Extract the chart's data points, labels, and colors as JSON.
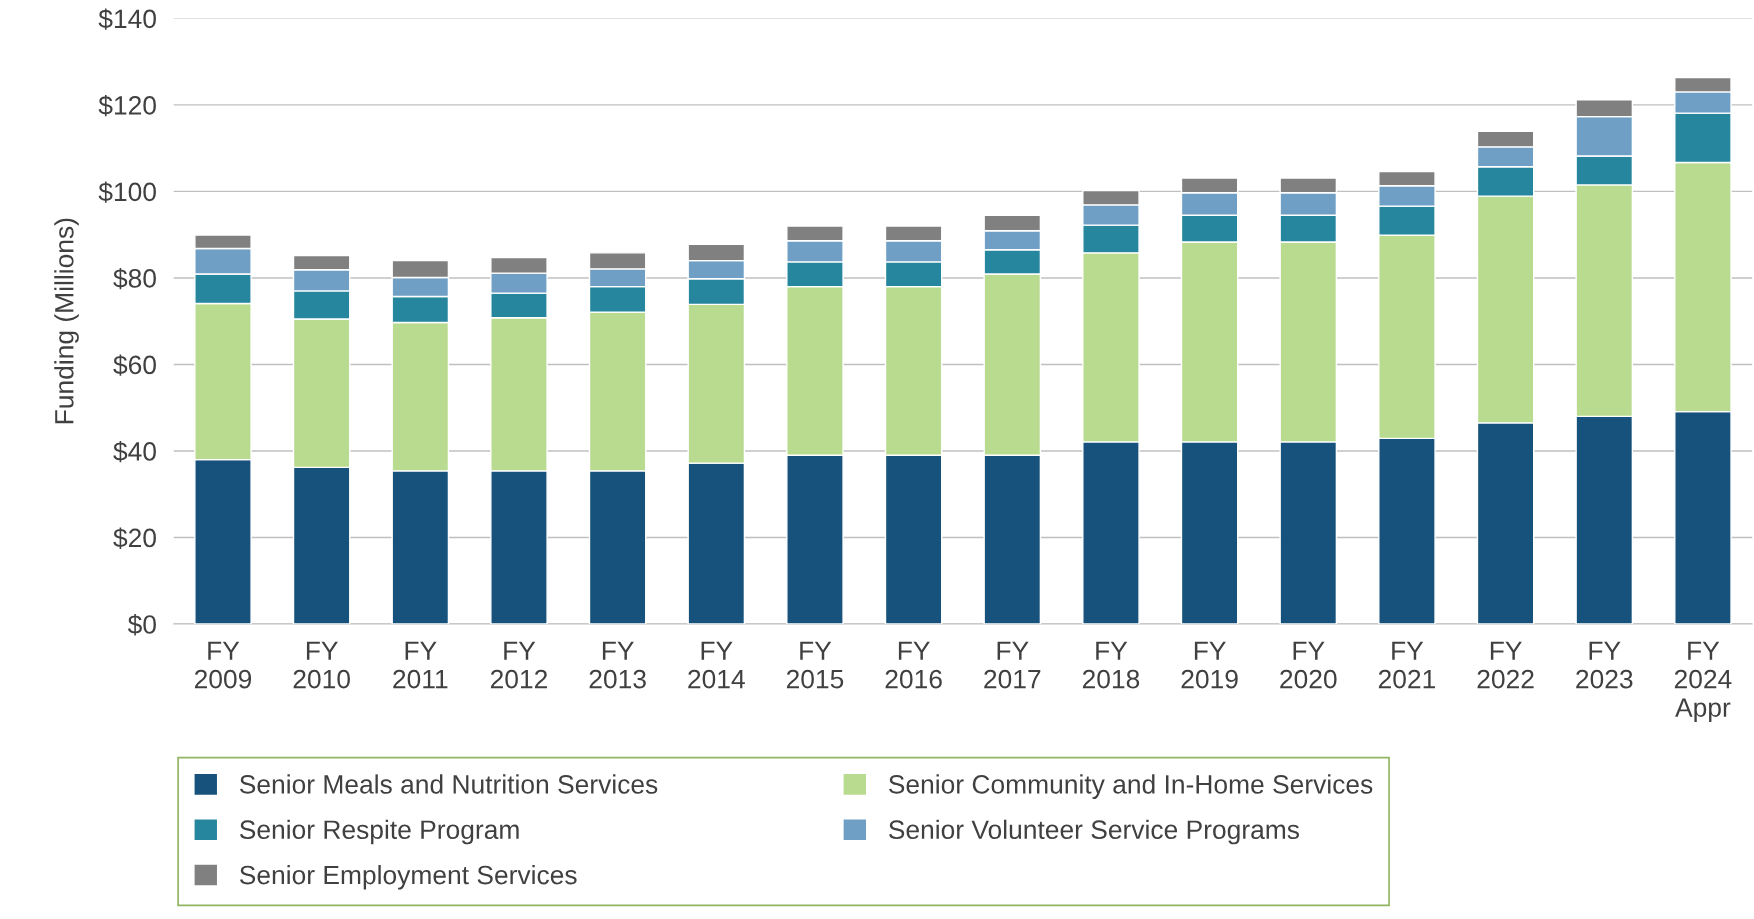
{
  "chart_data": {
    "type": "bar",
    "stacked": true,
    "ylabel": "Funding (Millions)",
    "categories": [
      "FY\n2009",
      "FY\n2010",
      "FY\n2011",
      "FY\n2012",
      "FY\n2013",
      "FY\n2014",
      "FY\n2015",
      "FY\n2016",
      "FY\n2017",
      "FY\n2018",
      "FY\n2019",
      "FY\n2020",
      "FY\n2021",
      "FY\n2022",
      "FY\n2023",
      "FY\n2024\nAppr"
    ],
    "series": [
      {
        "name": "Senior Meals and Nutrition Services",
        "color": "#16527c",
        "values": [
          38.0,
          36.2,
          35.4,
          35.4,
          35.4,
          37.2,
          39.0,
          39.0,
          39.0,
          42.1,
          42.1,
          42.1,
          42.9,
          46.5,
          48.0,
          49.1
        ]
      },
      {
        "name": "Senior Community and In-Home Services",
        "color": "#b8db8f",
        "values": [
          36.1,
          34.3,
          34.3,
          35.4,
          36.7,
          36.7,
          39.0,
          39.0,
          41.9,
          43.7,
          46.2,
          46.2,
          47.0,
          52.4,
          53.5,
          57.6
        ]
      },
      {
        "name": "Senior Respite Program",
        "color": "#25869e",
        "values": [
          6.8,
          6.5,
          6.0,
          5.7,
          5.9,
          5.9,
          5.7,
          5.7,
          5.6,
          6.4,
          6.2,
          6.2,
          6.7,
          6.8,
          6.7,
          11.4
        ]
      },
      {
        "name": "Senior Volunteer Service Programs",
        "color": "#6f9fc4",
        "values": [
          5.9,
          4.9,
          4.4,
          4.6,
          4.1,
          4.2,
          4.9,
          4.9,
          4.4,
          4.7,
          5.2,
          5.2,
          4.7,
          4.6,
          9.1,
          4.9
        ]
      },
      {
        "name": "Senior Employment Services",
        "color": "#808080",
        "values": [
          3.1,
          3.3,
          3.9,
          3.6,
          3.7,
          3.8,
          3.4,
          3.4,
          3.6,
          3.3,
          3.4,
          3.4,
          3.3,
          3.6,
          3.9,
          3.3
        ]
      }
    ],
    "ylim": [
      0,
      140
    ],
    "yticks": [
      {
        "value": 0,
        "label": "$0"
      },
      {
        "value": 20,
        "label": "$20"
      },
      {
        "value": 40,
        "label": "$40"
      },
      {
        "value": 60,
        "label": "$60"
      },
      {
        "value": 80,
        "label": "$80"
      },
      {
        "value": 100,
        "label": "$100"
      },
      {
        "value": 120,
        "label": "$120"
      },
      {
        "value": 140,
        "label": "$140"
      }
    ],
    "grid": "y",
    "legend": "bottom"
  }
}
